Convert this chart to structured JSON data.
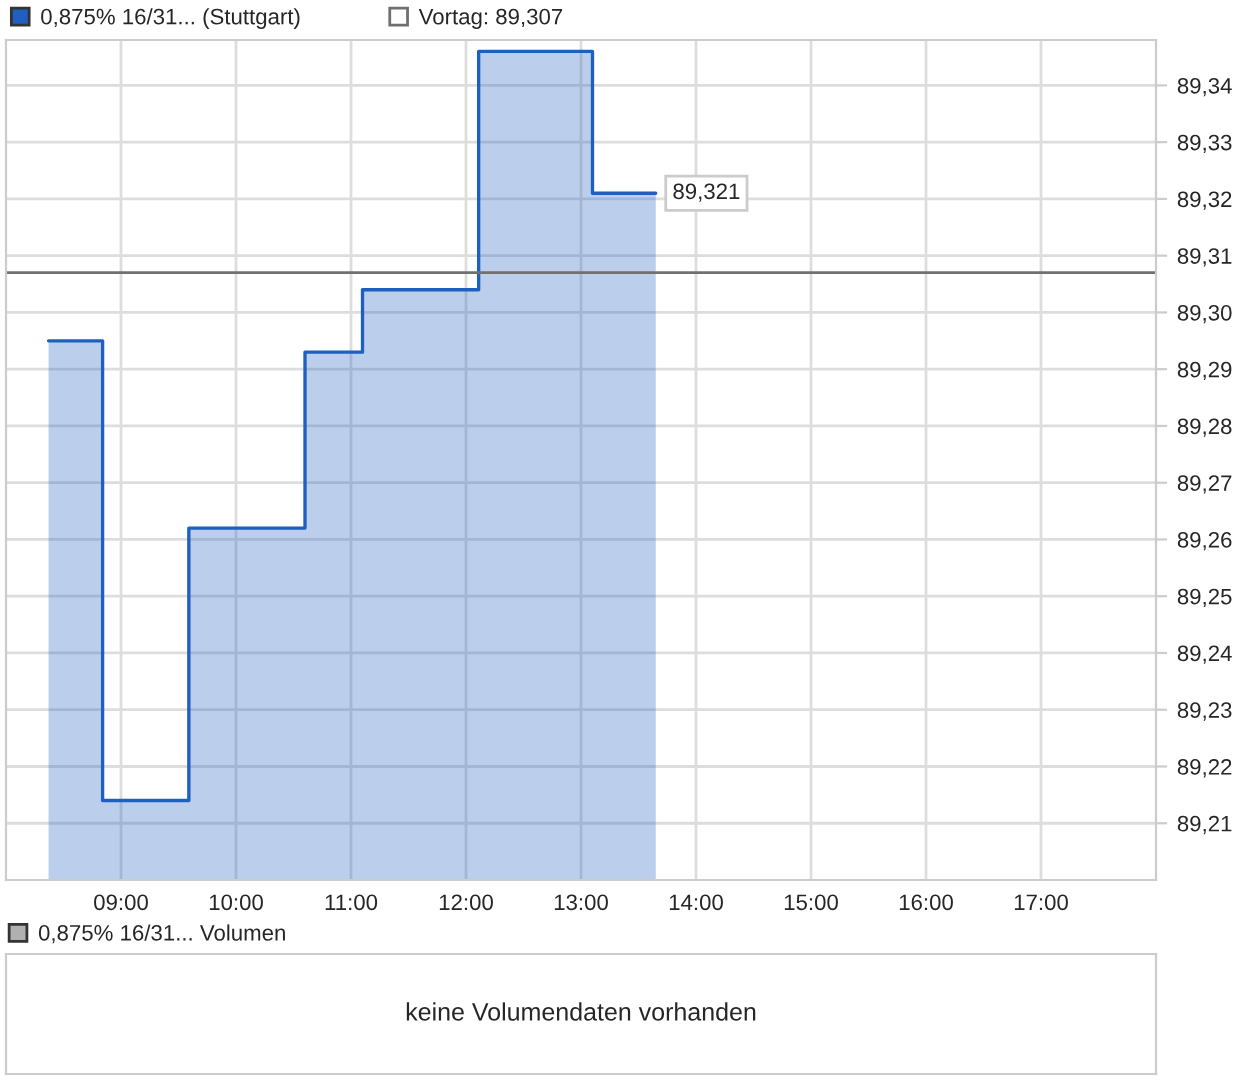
{
  "chart_data": [
    {
      "type": "area",
      "x": [
        8.37,
        8.84,
        8.84,
        9.59,
        9.59,
        10.6,
        10.6,
        11.1,
        11.1,
        12.11,
        12.11,
        13.1,
        13.1,
        13.65
      ],
      "series": [
        {
          "name": "0,875% 16/31... (Stuttgart)",
          "color": "#1f5fbf",
          "values": [
            89.295,
            89.295,
            89.214,
            89.214,
            89.262,
            89.262,
            89.293,
            89.293,
            89.304,
            89.304,
            89.346,
            89.346,
            89.321,
            89.321
          ]
        }
      ],
      "xlim": [
        8.0,
        18.0
      ],
      "xticks": [
        {
          "value": 9,
          "label": "09:00"
        },
        {
          "value": 10,
          "label": "10:00"
        },
        {
          "value": 11,
          "label": "11:00"
        },
        {
          "value": 12,
          "label": "12:00"
        },
        {
          "value": 13,
          "label": "13:00"
        },
        {
          "value": 14,
          "label": "14:00"
        },
        {
          "value": 15,
          "label": "15:00"
        },
        {
          "value": 16,
          "label": "16:00"
        },
        {
          "value": 17,
          "label": "17:00"
        }
      ],
      "ylim": [
        89.2,
        89.348
      ],
      "yticks": [
        {
          "value": 89.21,
          "label": "89,21"
        },
        {
          "value": 89.22,
          "label": "89,22"
        },
        {
          "value": 89.23,
          "label": "89,23"
        },
        {
          "value": 89.24,
          "label": "89,24"
        },
        {
          "value": 89.25,
          "label": "89,25"
        },
        {
          "value": 89.26,
          "label": "89,26"
        },
        {
          "value": 89.27,
          "label": "89,27"
        },
        {
          "value": 89.28,
          "label": "89,28"
        },
        {
          "value": 89.29,
          "label": "89,29"
        },
        {
          "value": 89.3,
          "label": "89,30"
        },
        {
          "value": 89.31,
          "label": "89,31"
        },
        {
          "value": 89.32,
          "label": "89,32"
        },
        {
          "value": 89.33,
          "label": "89,33"
        },
        {
          "value": 89.34,
          "label": "89,34"
        }
      ],
      "ref_lines": [
        {
          "axis": "y",
          "value": 89.307,
          "label": "Vortag: 89,307",
          "color": "#707070"
        }
      ],
      "annotations": [
        {
          "text": "89,321",
          "x": 13.65,
          "y": 89.321
        }
      ],
      "grid": true,
      "legend": "top left"
    },
    {
      "type": "other",
      "title": "0,875% 16/31... Volumen",
      "annotations": [
        "keine Volumendaten vorhanden"
      ]
    }
  ]
}
